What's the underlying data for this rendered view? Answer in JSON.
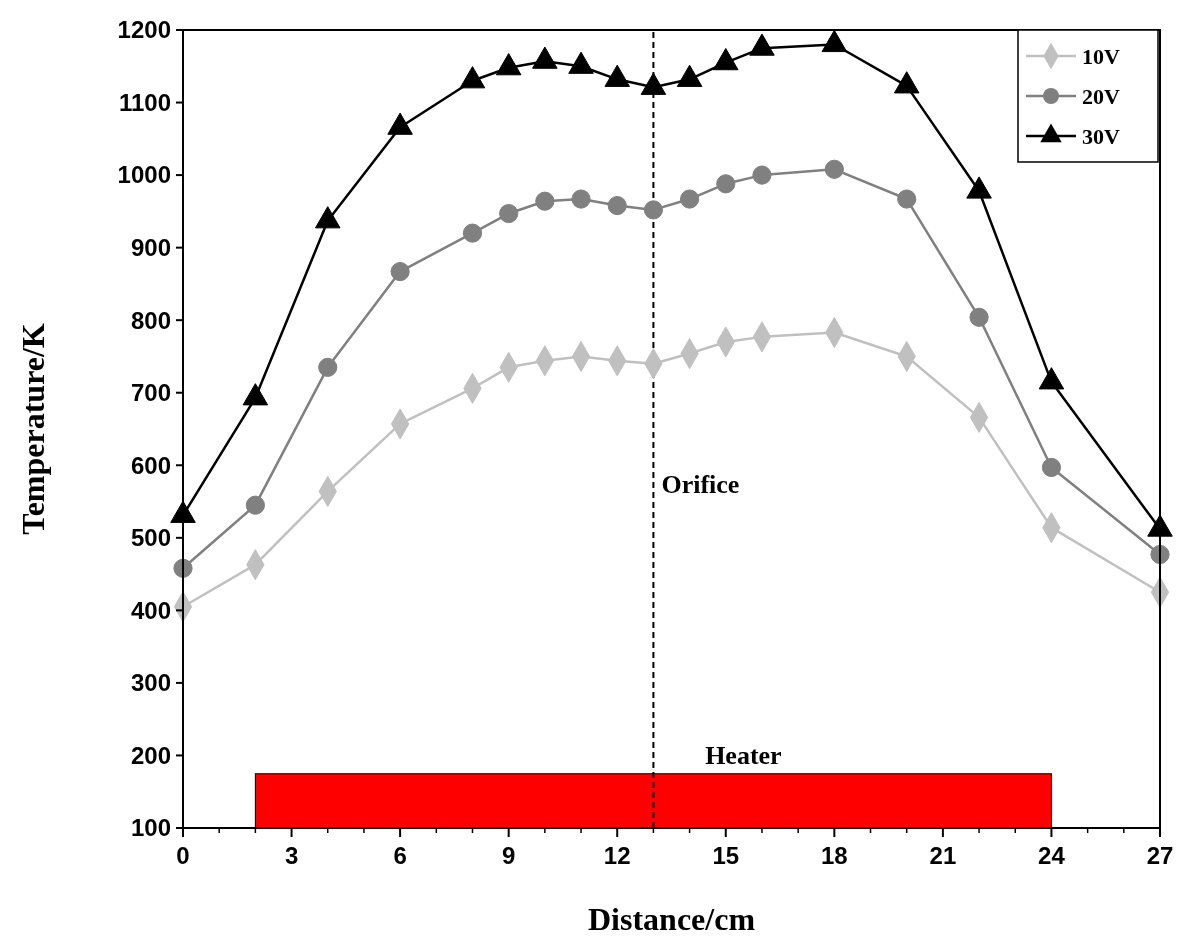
{
  "chart_data": {
    "type": "line",
    "xlabel": "Distance/cm",
    "ylabel": "Temperature/K",
    "x": [
      0,
      2,
      4,
      6,
      8,
      9,
      10,
      11,
      12,
      13,
      14,
      15,
      16,
      18,
      20,
      22,
      24,
      27
    ],
    "series": [
      {
        "name": "10V",
        "color": "#c0c0c0",
        "marker": "diamond",
        "values": [
          405,
          463,
          564,
          657,
          706,
          735,
          744,
          750,
          744,
          740,
          754,
          770,
          777,
          783,
          750,
          666,
          514,
          425
        ]
      },
      {
        "name": "20V",
        "color": "#808080",
        "marker": "circle",
        "values": [
          458,
          545,
          735,
          867,
          920,
          947,
          964,
          967,
          958,
          952,
          967,
          988,
          1000,
          1008,
          967,
          804,
          597,
          477
        ]
      },
      {
        "name": "30V",
        "color": "#000000",
        "marker": "triangle",
        "values": [
          531,
          693,
          937,
          1066,
          1130,
          1148,
          1157,
          1150,
          1132,
          1121,
          1132,
          1155,
          1175,
          1180,
          1123,
          978,
          715,
          512
        ]
      }
    ],
    "xlim": [
      0,
      27
    ],
    "xticks": [
      0,
      3,
      6,
      9,
      12,
      15,
      18,
      21,
      24,
      27
    ],
    "ylim": [
      100,
      1200
    ],
    "yticks": [
      100,
      200,
      300,
      400,
      500,
      600,
      700,
      800,
      900,
      1000,
      1100,
      1200
    ],
    "ref_lines": [
      {
        "axis": "x",
        "value": 13,
        "label": "Orifice",
        "line_style": "dashed",
        "color": "#000000"
      }
    ],
    "bands": [
      {
        "axis": "x",
        "from": 2,
        "to": 24,
        "label": "Heater",
        "color": "#ff0000"
      }
    ],
    "grid": false,
    "legend": "top right"
  }
}
